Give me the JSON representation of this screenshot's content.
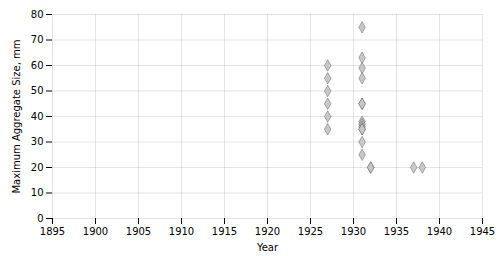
{
  "chart_data": {
    "type": "scatter",
    "x": [
      1927,
      1927,
      1927,
      1927,
      1927,
      1927,
      1931,
      1931,
      1931,
      1931,
      1931,
      1931,
      1931,
      1931,
      1931,
      1931,
      1931,
      1931,
      1931,
      1932,
      1932,
      1937,
      1938
    ],
    "values": [
      60,
      55,
      50,
      45,
      40,
      35,
      75,
      63,
      59,
      55,
      45,
      45,
      38,
      37,
      36,
      35,
      35,
      30,
      25,
      20,
      20,
      20,
      20
    ],
    "xlabel": "Year",
    "ylabel": "Maximum Aggregate Size, mm",
    "xlim": [
      1895,
      1945
    ],
    "ylim": [
      0,
      80
    ],
    "xticks": [
      1895,
      1900,
      1905,
      1910,
      1915,
      1920,
      1925,
      1930,
      1935,
      1940,
      1945
    ],
    "yticks": [
      0,
      10,
      20,
      30,
      40,
      50,
      60,
      70,
      80
    ],
    "grid": true,
    "color": "#c8c8c8",
    "marker": "diamond"
  }
}
